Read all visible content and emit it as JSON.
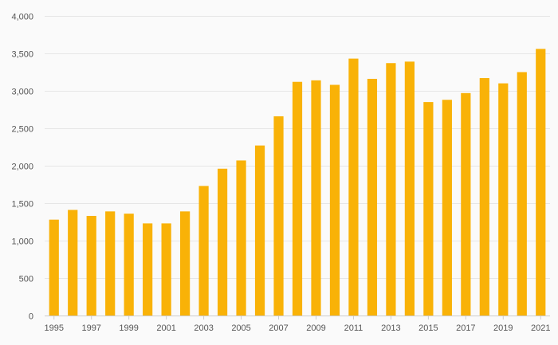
{
  "chart_data": {
    "type": "bar",
    "title": "",
    "xlabel": "",
    "ylabel": "",
    "ylim": [
      0,
      4000
    ],
    "yticks": [
      0,
      500,
      1000,
      1500,
      2000,
      2500,
      3000,
      3500,
      4000
    ],
    "ytick_labels": [
      "0",
      "500",
      "1,000",
      "1,500",
      "2,000",
      "2,500",
      "3,000",
      "3,500",
      "4,000"
    ],
    "categories": [
      "1995",
      "1996",
      "1997",
      "1998",
      "1999",
      "2000",
      "2001",
      "2002",
      "2003",
      "2004",
      "2005",
      "2006",
      "2007",
      "2008",
      "2009",
      "2010",
      "2011",
      "2012",
      "2013",
      "2014",
      "2015",
      "2016",
      "2017",
      "2018",
      "2019",
      "2020",
      "2021"
    ],
    "xtick_labels": [
      "1995",
      "1997",
      "1999",
      "2001",
      "2003",
      "2005",
      "2007",
      "2009",
      "2011",
      "2013",
      "2015",
      "2017",
      "2019",
      "2021"
    ],
    "values": [
      1280,
      1410,
      1330,
      1390,
      1360,
      1230,
      1230,
      1390,
      1730,
      1960,
      2070,
      2270,
      2660,
      3120,
      3140,
      3080,
      3430,
      3160,
      3370,
      3390,
      2850,
      2880,
      2970,
      3170,
      3100,
      3250,
      3560
    ],
    "bar_color": "#f9b207",
    "grid": true
  }
}
